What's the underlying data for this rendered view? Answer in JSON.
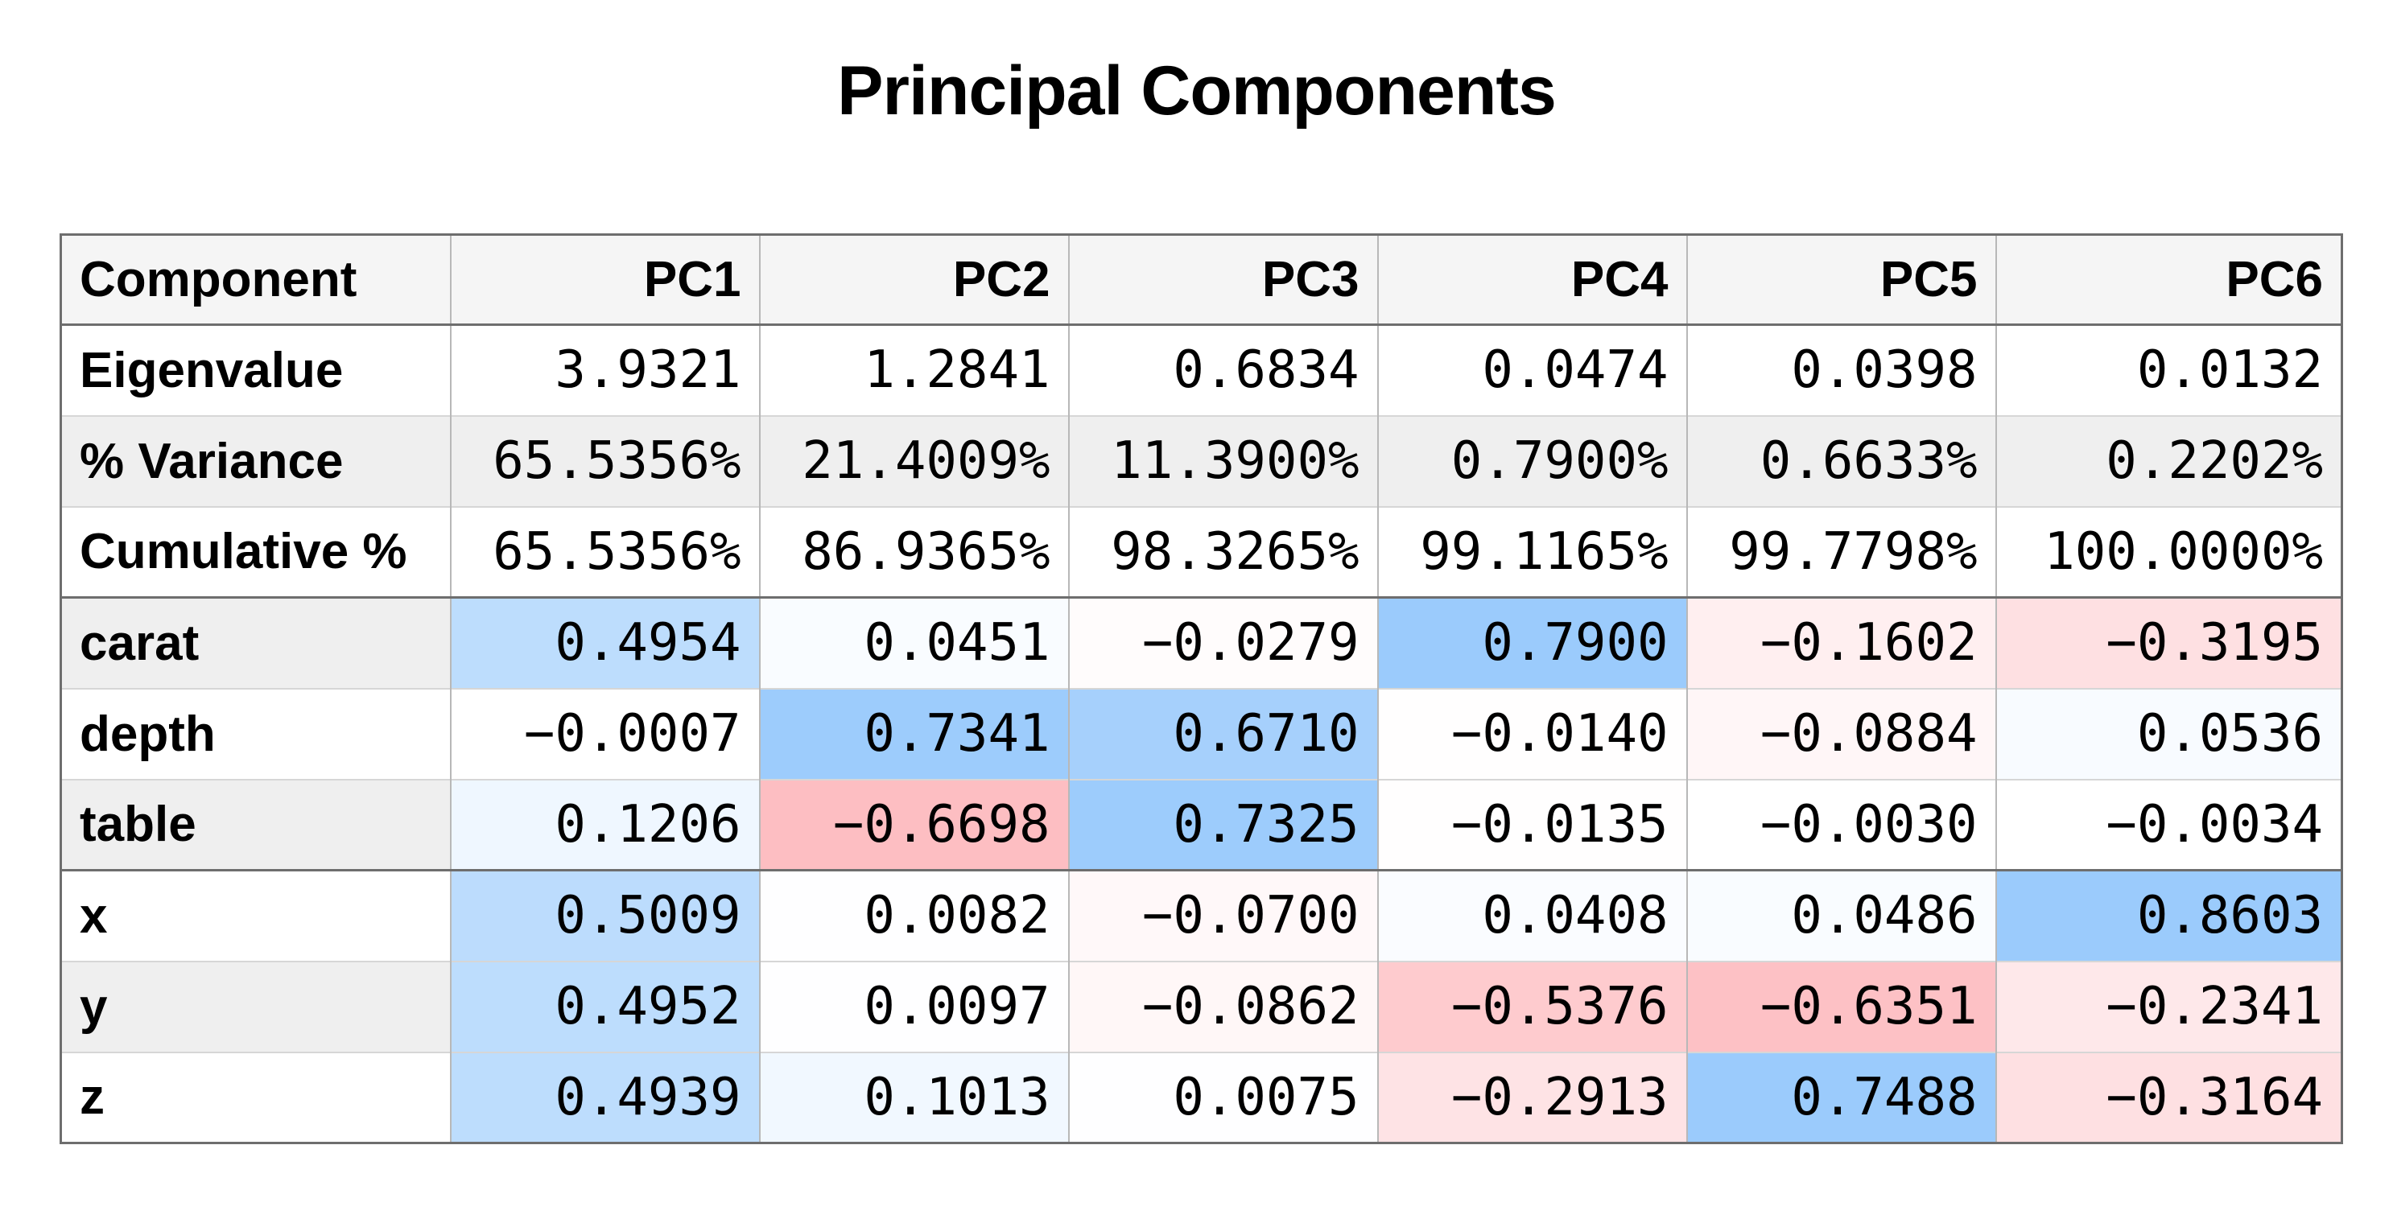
{
  "title": "Principal Components",
  "chart_data": {
    "type": "table",
    "title": "Principal Components",
    "header": {
      "label": "Component",
      "components": [
        "PC1",
        "PC2",
        "PC3",
        "PC4",
        "PC5",
        "PC6"
      ]
    },
    "summary_rows": [
      {
        "label": "Eigenvalue",
        "cells": [
          "3.9321",
          "1.2841",
          "0.6834",
          "0.0474",
          "0.0398",
          "0.0132"
        ]
      },
      {
        "label": "% Variance",
        "cells": [
          "65.5356%",
          "21.4009%",
          "11.3900%",
          "0.7900%",
          "0.6633%",
          "0.2202%"
        ]
      },
      {
        "label": "Cumulative %",
        "cells": [
          "65.5356%",
          "86.9365%",
          "98.3265%",
          "99.1165%",
          "99.7798%",
          "100.0000%"
        ]
      }
    ],
    "loading_rows": [
      {
        "label": "carat",
        "cells": [
          "0.4954",
          "0.0451",
          "−0.0279",
          "0.7900",
          "−0.1602",
          "−0.3195"
        ],
        "values": [
          0.4954,
          0.0451,
          -0.0279,
          0.79,
          -0.1602,
          -0.3195
        ]
      },
      {
        "label": "depth",
        "cells": [
          "−0.0007",
          "0.7341",
          "0.6710",
          "−0.0140",
          "−0.0884",
          "0.0536"
        ],
        "values": [
          -0.0007,
          0.7341,
          0.671,
          -0.014,
          -0.0884,
          0.0536
        ]
      },
      {
        "label": "table",
        "cells": [
          "0.1206",
          "−0.6698",
          "0.7325",
          "−0.0135",
          "−0.0030",
          "−0.0034"
        ],
        "values": [
          0.1206,
          -0.6698,
          0.7325,
          -0.0135,
          -0.003,
          -0.0034
        ]
      },
      {
        "label": "x",
        "cells": [
          "0.5009",
          "0.0082",
          "−0.0700",
          "0.0408",
          "0.0486",
          "0.8603"
        ],
        "values": [
          0.5009,
          0.0082,
          -0.07,
          0.0408,
          0.0486,
          0.8603
        ]
      },
      {
        "label": "y",
        "cells": [
          "0.4952",
          "0.0097",
          "−0.0862",
          "−0.5376",
          "−0.6351",
          "−0.2341"
        ],
        "values": [
          0.4952,
          0.0097,
          -0.0862,
          -0.5376,
          -0.6351,
          -0.2341
        ]
      },
      {
        "label": "z",
        "cells": [
          "0.4939",
          "0.1013",
          "0.0075",
          "−0.2913",
          "0.7488",
          "−0.3164"
        ],
        "values": [
          0.4939,
          0.1013,
          0.0075,
          -0.2913,
          0.7488,
          -0.3164
        ]
      }
    ],
    "colors": {
      "positive": "#9bcbfc",
      "negative": "#fdb6bb",
      "header_bg": "#f5f5f5",
      "stripe_bg": "#efefef"
    }
  }
}
